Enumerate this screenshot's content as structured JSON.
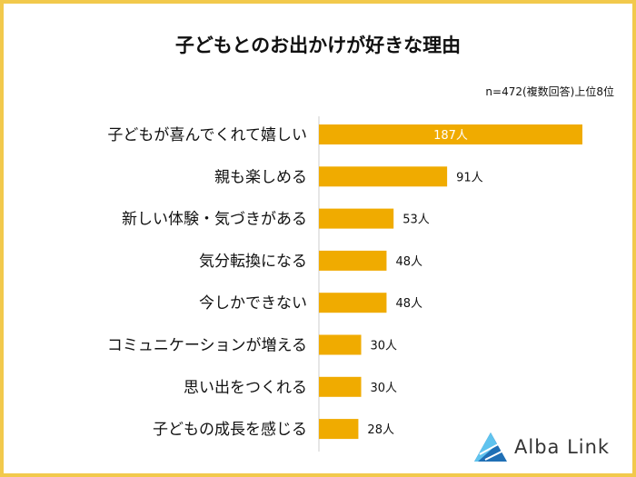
{
  "chart_data": {
    "type": "bar",
    "orientation": "horizontal",
    "title": "子どもとのお出かけが好きな理由",
    "note": "n=472(複数回答)上位8位",
    "categories": [
      "子どもが喜んでくれて嬉しい",
      "親も楽しめる",
      "新しい体験・気づきがある",
      "気分転換になる",
      "今しかできない",
      "コミュニケーションが増える",
      "思い出をつくれる",
      "子どもの成長を感じる"
    ],
    "values": [
      187,
      91,
      53,
      48,
      48,
      30,
      30,
      28
    ],
    "value_labels": [
      "187人",
      "91人",
      "53人",
      "48人",
      "48人",
      "30人",
      "30人",
      "28人"
    ],
    "value_unit": "人",
    "xlim": [
      0,
      187
    ],
    "grid": false,
    "legend": "none"
  },
  "colors": {
    "bar": "#f0ab00",
    "frame": "#f2c94c",
    "axis": "#cccccc",
    "logo_dark": "#1f6fb5",
    "logo_light": "#5fc3ee"
  },
  "logo": {
    "text": "Alba Link",
    "icon": "alba-link-triangle-icon"
  }
}
